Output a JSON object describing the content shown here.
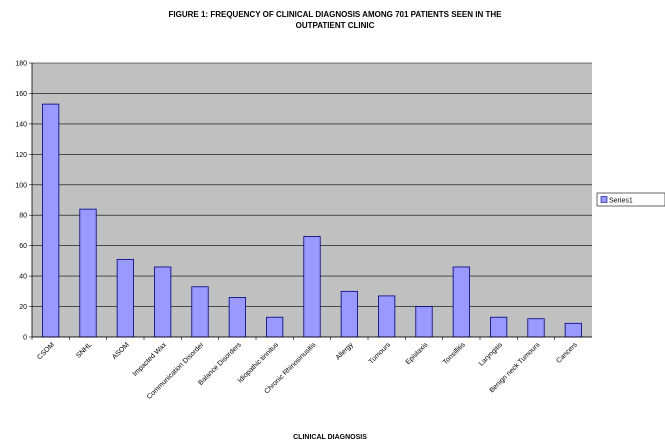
{
  "chart_data": {
    "type": "bar",
    "title": "FIGURE 1: FREQUENCY OF CLINICAL DIAGNOSIS AMONG 701 PATIENTS SEEN IN THE OUTPATIENT CLINIC",
    "title_lines": [
      "FIGURE 1: FREQUENCY OF CLINICAL DIAGNOSIS AMONG 701 PATIENTS SEEN IN THE",
      "OUTPATIENT CLINIC"
    ],
    "xlabel": "CLINICAL DIAGNOSIS",
    "ylabel": "",
    "ylim": [
      0,
      180
    ],
    "yticks": [
      0,
      20,
      40,
      60,
      80,
      100,
      120,
      140,
      160,
      180
    ],
    "grid": true,
    "legend_position": "right",
    "categories": [
      "CSOM",
      "SNHL",
      "ASOM",
      "Impacted Wax",
      "Communication Disorder",
      "Balance Disorders",
      "Idiopathic tinnitus",
      "Chronic Rhinosinusitis",
      "Allergy",
      "Tumours",
      "Epistaxis",
      "Tonsillitis",
      "Laryngitis",
      "Benign neck Tumours",
      "Cancers"
    ],
    "series": [
      {
        "name": "Series1",
        "values": [
          153,
          84,
          51,
          46,
          33,
          26,
          13,
          66,
          30,
          27,
          20,
          46,
          13,
          12,
          9
        ]
      }
    ],
    "colors": {
      "plot_bg": "#c0c0c0",
      "bar_fill": "#9999ff",
      "bar_stroke": "#000080",
      "grid": "#000000"
    }
  }
}
